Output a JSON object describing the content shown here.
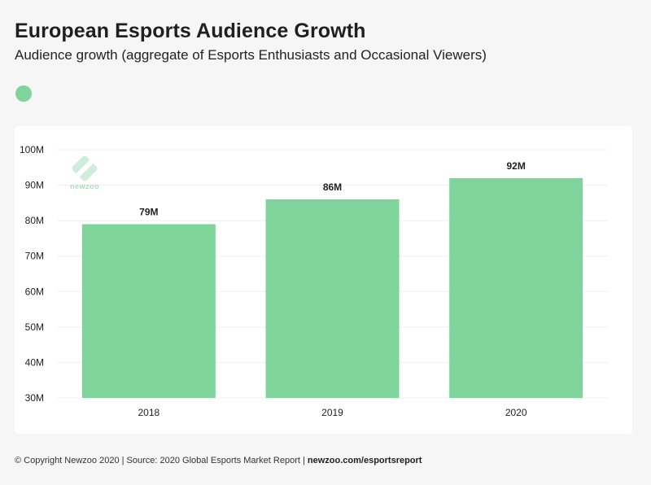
{
  "title": "European Esports Audience Growth",
  "subtitle": "Audience growth (aggregate of Esports Enthusiasts and Occasional Viewers)",
  "logo": {
    "text": "newzoo"
  },
  "footer": {
    "text": "© Copyright Newzoo 2020 | Source: 2020 Global Esports Market Report | ",
    "link": "newzoo.com/esportsreport"
  },
  "colors": {
    "bar": "#7ed49b",
    "grid": "#efefef",
    "text": "#1f1f1f"
  },
  "chart_data": {
    "type": "bar",
    "title": "European Esports Audience Growth",
    "subtitle": "Audience growth (aggregate of Esports Enthusiasts and Occasional Viewers)",
    "categories": [
      "2018",
      "2019",
      "2020"
    ],
    "values": [
      79,
      86,
      92
    ],
    "value_labels": [
      "79M",
      "86M",
      "92M"
    ],
    "unit": "M",
    "ylim": [
      30,
      100
    ],
    "yticks": [
      30,
      40,
      50,
      60,
      70,
      80,
      90,
      100
    ],
    "ytick_labels": [
      "30M",
      "40M",
      "50M",
      "60M",
      "70M",
      "80M",
      "90M",
      "100M"
    ],
    "xlabel": "",
    "ylabel": "",
    "grid": true
  }
}
